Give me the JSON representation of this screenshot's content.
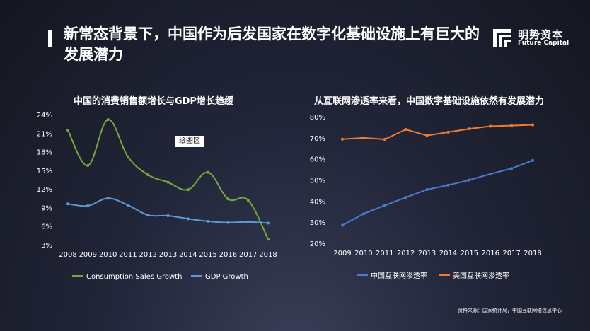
{
  "header": {
    "title": "新常态背景下，中国作为后发国家在数字化基础设施上有巨大的发展潜力",
    "logo_cn": "明势资本",
    "logo_en": "Future Capital"
  },
  "plot_area_label": "绘图区",
  "source": "资料来源：国家统计局，中国互联网络信息中心",
  "chart_data": [
    {
      "type": "line",
      "title": "中国的消费销售额增长与GDP增长趋缓",
      "x": [
        "2008",
        "2009",
        "2010",
        "2011",
        "2012",
        "2013",
        "2014",
        "2015",
        "2016",
        "2017",
        "2018"
      ],
      "yticks": [
        "3%",
        "6%",
        "9%",
        "12%",
        "15%",
        "18%",
        "21%",
        "24%"
      ],
      "ylim": [
        3,
        24
      ],
      "smooth": true,
      "legend": "bottom",
      "series": [
        {
          "name": "Consumption Sales Growth",
          "color": "#74a93a",
          "values": [
            21.6,
            15.9,
            23.3,
            17.3,
            14.4,
            13.2,
            12.0,
            14.8,
            10.5,
            10.3,
            4.0
          ]
        },
        {
          "name": "GDP Growth",
          "color": "#5b9bd5",
          "values": [
            9.7,
            9.4,
            10.6,
            9.5,
            7.9,
            7.8,
            7.3,
            6.9,
            6.7,
            6.8,
            6.6
          ]
        }
      ]
    },
    {
      "type": "line",
      "title": "从互联网渗透率来看，中国数字基础设施依然有发展潜力",
      "x": [
        "2009",
        "2010",
        "2011",
        "2012",
        "2013",
        "2014",
        "2015",
        "2016",
        "2017",
        "2018"
      ],
      "yticks": [
        "20%",
        "30%",
        "40%",
        "50%",
        "60%",
        "70%",
        "80%"
      ],
      "ylim": [
        20,
        80
      ],
      "smooth": false,
      "legend": "bottom",
      "series": [
        {
          "name": "中国互联网渗透率",
          "color": "#4a7cc9",
          "values": [
            28.9,
            34.3,
            38.3,
            42.1,
            45.8,
            47.9,
            50.3,
            53.2,
            55.8,
            59.6
          ]
        },
        {
          "name": "美国互联网渗透率",
          "color": "#ed7d31",
          "values": [
            69.7,
            70.3,
            69.6,
            74.3,
            71.4,
            73.0,
            74.6,
            75.8,
            76.1,
            76.5
          ]
        }
      ]
    }
  ]
}
